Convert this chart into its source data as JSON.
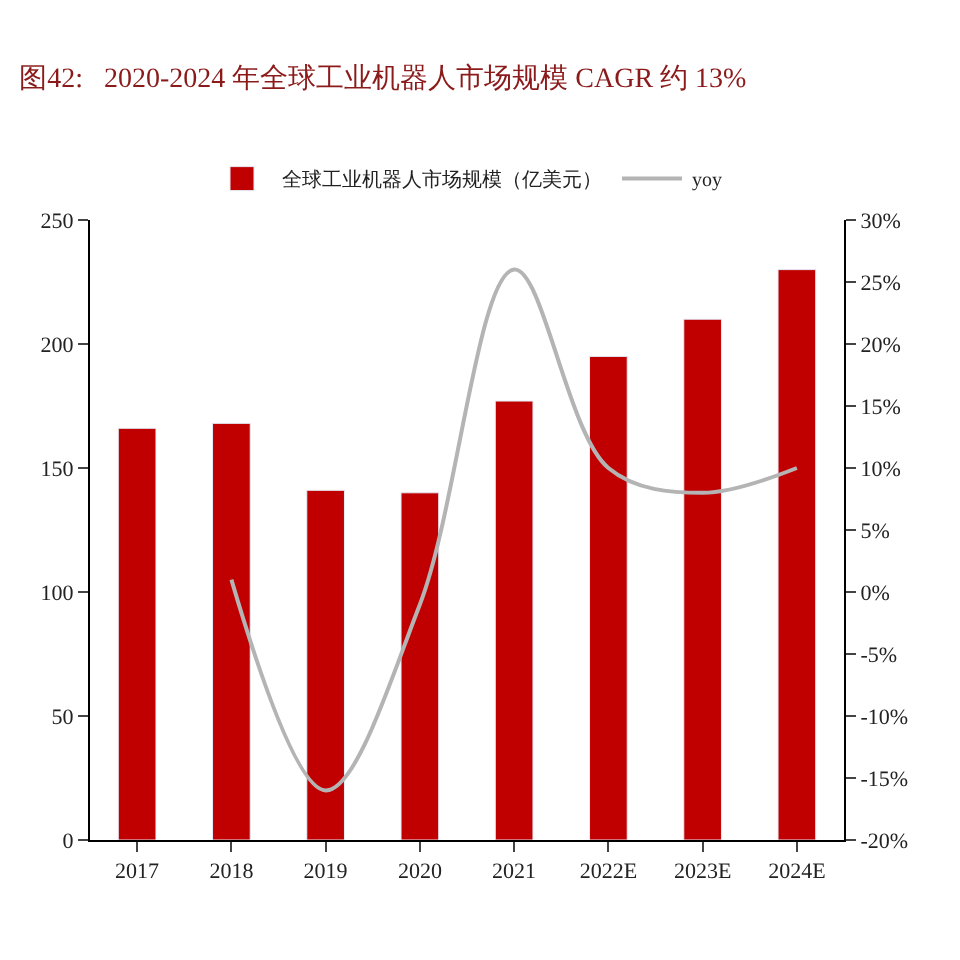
{
  "chart_data": {
    "type": "bar",
    "title": "图42:   2020-2024 年全球工业机器人市场规模 CAGR 约 13%",
    "categories": [
      "2017",
      "2018",
      "2019",
      "2020",
      "2021",
      "2022E",
      "2023E",
      "2024E"
    ],
    "series": [
      {
        "name": "全球工业机器人市场规模（亿美元）",
        "color": "#c00000",
        "values": [
          166,
          168,
          141,
          140,
          177,
          195,
          210,
          230
        ]
      },
      {
        "name": "yoy",
        "type": "line",
        "axis": "y2",
        "color": "#b4b4b4",
        "values": [
          null,
          1,
          -16,
          -1,
          26,
          10,
          8,
          10
        ]
      }
    ],
    "ylim": [
      0,
      250
    ],
    "yticks": [
      0,
      50,
      100,
      150,
      200,
      250
    ],
    "y2lim": [
      -20,
      30
    ],
    "y2ticks": [
      {
        "value": -20,
        "label": "-20%"
      },
      {
        "value": -15,
        "label": "-15%"
      },
      {
        "value": -10,
        "label": "-10%"
      },
      {
        "value": -5,
        "label": "-5%"
      },
      {
        "value": 0,
        "label": "0%"
      },
      {
        "value": 5,
        "label": "5%"
      },
      {
        "value": 10,
        "label": "10%"
      },
      {
        "value": 15,
        "label": "15%"
      },
      {
        "value": 20,
        "label": "20%"
      },
      {
        "value": 25,
        "label": "25%"
      },
      {
        "value": 30,
        "label": "30%"
      }
    ],
    "legend": "top",
    "marker": "none",
    "line_style": "solid"
  }
}
